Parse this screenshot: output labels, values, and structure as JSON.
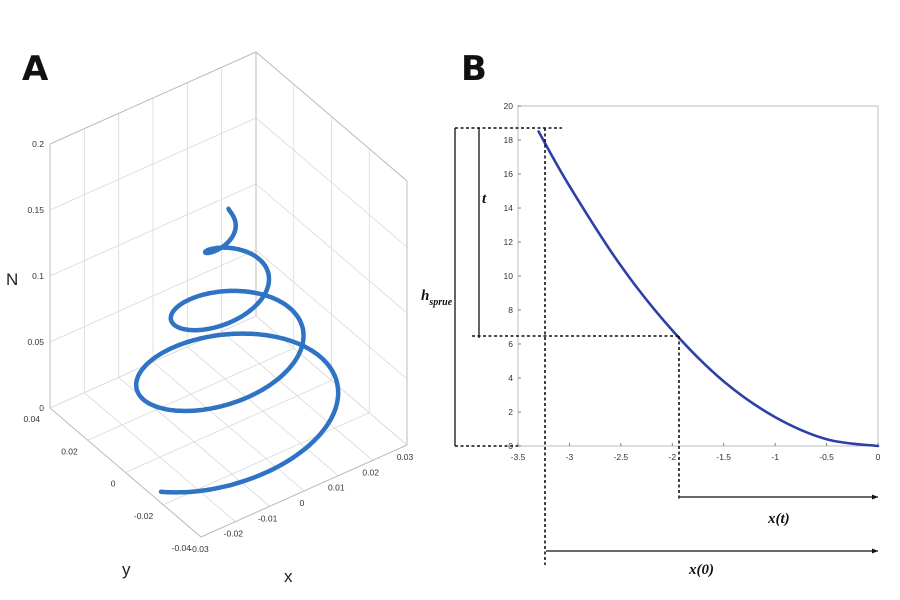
{
  "panels": {
    "a_label": "A",
    "b_label": "B"
  },
  "chart_data": [
    {
      "panel": "A",
      "type": "line3d",
      "title": "",
      "xlabel": "x",
      "ylabel": "y",
      "zlabel": "N",
      "xlim": [
        -0.03,
        0.03
      ],
      "ylim": [
        -0.04,
        0.04
      ],
      "zlim": [
        0,
        0.2
      ],
      "xticks": [
        "-0.03",
        "-0.02",
        "-0.01",
        "0",
        "0.01",
        "0.02",
        "0.03"
      ],
      "yticks": [
        "-0.04",
        "-0.02",
        "0",
        "0.02",
        "0.04"
      ],
      "zticks": [
        "0",
        "0.05",
        "0.1",
        "0.15",
        "0.2"
      ],
      "grid": true,
      "color": "#2f73c4",
      "curve": "conical helix, radius shrinking from ~0.03 at N=0 to 0 at N≈0.165, about 3.5 turns"
    },
    {
      "panel": "B",
      "type": "line",
      "title": "",
      "xlim": [
        -3.5,
        0
      ],
      "ylim": [
        0,
        20
      ],
      "xticks": [
        "-3.5",
        "-3",
        "-2.5",
        "-2",
        "-1.5",
        "-1",
        "-0.5",
        "0"
      ],
      "yticks": [
        "0",
        "2",
        "4",
        "6",
        "8",
        "10",
        "12",
        "14",
        "16",
        "18",
        "20"
      ],
      "grid": false,
      "color": "#2e3fa8",
      "x": [
        -3.3,
        -3.0,
        -2.5,
        -2.0,
        -1.5,
        -1.0,
        -0.5,
        0.0
      ],
      "y": [
        18.5,
        15.3,
        10.6,
        6.8,
        3.8,
        1.7,
        0.4,
        0.0
      ],
      "annotations": {
        "t": "t",
        "h_main": "h",
        "h_sub": "sprue",
        "xt": "x(t)",
        "x0": "x(0)"
      }
    }
  ]
}
